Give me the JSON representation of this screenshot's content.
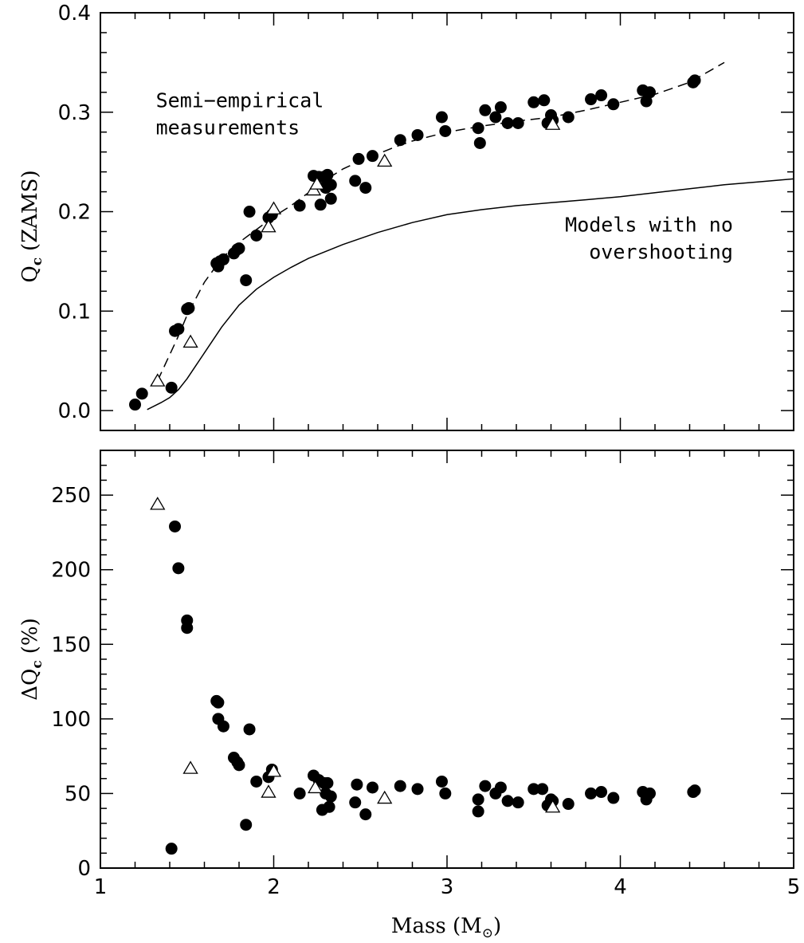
{
  "chart_data": [
    {
      "type": "scatter",
      "xlim": [
        1,
        5
      ],
      "ylim": [
        -0.02,
        0.4
      ],
      "ylabel": "Q_c (ZAMS)",
      "ylabel_main": "Q",
      "ylabel_sub": "c",
      "ylabel_rest": "(ZAMS)",
      "xticks": [
        1,
        2,
        3,
        4,
        5
      ],
      "yticks": [
        0.0,
        0.1,
        0.2,
        0.3,
        0.4
      ],
      "ytick_labels": [
        "0.0",
        "0.1",
        "0.2",
        "0.3",
        "0.4"
      ],
      "annotations": [
        {
          "lines": [
            "Semi−empirical",
            "measurements"
          ],
          "at": [
            1.32,
            0.305
          ]
        },
        {
          "lines": [
            "Models with no",
            "overshooting"
          ],
          "at": [
            4.65,
            0.18
          ]
        }
      ],
      "series": [
        {
          "marker": "filled-circle",
          "points": [
            [
              1.2,
              0.006
            ],
            [
              1.24,
              0.017
            ],
            [
              1.41,
              0.023
            ],
            [
              1.43,
              0.08
            ],
            [
              1.45,
              0.082
            ],
            [
              1.5,
              0.102
            ],
            [
              1.51,
              0.103
            ],
            [
              1.67,
              0.148
            ],
            [
              1.68,
              0.145
            ],
            [
              1.69,
              0.15
            ],
            [
              1.71,
              0.152
            ],
            [
              1.77,
              0.158
            ],
            [
              1.79,
              0.162
            ],
            [
              1.8,
              0.163
            ],
            [
              1.84,
              0.131
            ],
            [
              1.86,
              0.2
            ],
            [
              1.9,
              0.176
            ],
            [
              1.97,
              0.194
            ],
            [
              1.99,
              0.197
            ],
            [
              2.15,
              0.206
            ],
            [
              2.23,
              0.236
            ],
            [
              2.26,
              0.235
            ],
            [
              2.27,
              0.207
            ],
            [
              2.29,
              0.235
            ],
            [
              2.3,
              0.224
            ],
            [
              2.31,
              0.237
            ],
            [
              2.33,
              0.213
            ],
            [
              2.33,
              0.227
            ],
            [
              2.47,
              0.231
            ],
            [
              2.49,
              0.253
            ],
            [
              2.53,
              0.224
            ],
            [
              2.57,
              0.256
            ],
            [
              2.73,
              0.272
            ],
            [
              2.83,
              0.277
            ],
            [
              2.97,
              0.295
            ],
            [
              2.99,
              0.281
            ],
            [
              3.18,
              0.284
            ],
            [
              3.19,
              0.269
            ],
            [
              3.22,
              0.302
            ],
            [
              3.28,
              0.295
            ],
            [
              3.31,
              0.305
            ],
            [
              3.35,
              0.289
            ],
            [
              3.41,
              0.289
            ],
            [
              3.5,
              0.31
            ],
            [
              3.56,
              0.312
            ],
            [
              3.58,
              0.289
            ],
            [
              3.6,
              0.297
            ],
            [
              3.61,
              0.292
            ],
            [
              3.7,
              0.295
            ],
            [
              3.83,
              0.313
            ],
            [
              3.89,
              0.317
            ],
            [
              3.96,
              0.308
            ],
            [
              4.13,
              0.322
            ],
            [
              4.15,
              0.311
            ],
            [
              4.17,
              0.32
            ],
            [
              4.42,
              0.33
            ],
            [
              4.43,
              0.332
            ]
          ]
        },
        {
          "marker": "open-triangle",
          "points": [
            [
              1.33,
              0.03
            ],
            [
              1.52,
              0.069
            ],
            [
              1.97,
              0.185
            ],
            [
              2.0,
              0.203
            ],
            [
              2.23,
              0.222
            ],
            [
              2.25,
              0.228
            ],
            [
              2.64,
              0.251
            ],
            [
              3.61,
              0.288
            ]
          ]
        },
        {
          "type": "line",
          "style": "dashed",
          "points": [
            [
              1.33,
              0.03
            ],
            [
              1.45,
              0.075
            ],
            [
              1.5,
              0.096
            ],
            [
              1.6,
              0.129
            ],
            [
              1.7,
              0.153
            ],
            [
              1.8,
              0.169
            ],
            [
              1.9,
              0.182
            ],
            [
              2.0,
              0.195
            ],
            [
              2.1,
              0.206
            ],
            [
              2.2,
              0.219
            ],
            [
              2.3,
              0.232
            ],
            [
              2.4,
              0.243
            ],
            [
              2.5,
              0.251
            ],
            [
              2.6,
              0.258
            ],
            [
              2.7,
              0.265
            ],
            [
              2.8,
              0.271
            ],
            [
              3.0,
              0.28
            ],
            [
              3.2,
              0.286
            ],
            [
              3.4,
              0.291
            ],
            [
              3.6,
              0.295
            ],
            [
              3.8,
              0.302
            ],
            [
              4.0,
              0.31
            ],
            [
              4.2,
              0.318
            ],
            [
              4.4,
              0.33
            ],
            [
              4.6,
              0.35
            ]
          ]
        },
        {
          "type": "line",
          "style": "solid",
          "points": [
            [
              1.27,
              0.001
            ],
            [
              1.35,
              0.008
            ],
            [
              1.4,
              0.013
            ],
            [
              1.45,
              0.021
            ],
            [
              1.5,
              0.032
            ],
            [
              1.55,
              0.045
            ],
            [
              1.6,
              0.058
            ],
            [
              1.7,
              0.084
            ],
            [
              1.8,
              0.106
            ],
            [
              1.9,
              0.122
            ],
            [
              2.0,
              0.134
            ],
            [
              2.1,
              0.144
            ],
            [
              2.2,
              0.153
            ],
            [
              2.4,
              0.167
            ],
            [
              2.6,
              0.179
            ],
            [
              2.8,
              0.189
            ],
            [
              3.0,
              0.197
            ],
            [
              3.2,
              0.202
            ],
            [
              3.4,
              0.206
            ],
            [
              3.6,
              0.209
            ],
            [
              3.8,
              0.212
            ],
            [
              4.0,
              0.215
            ],
            [
              4.2,
              0.219
            ],
            [
              4.4,
              0.223
            ],
            [
              4.6,
              0.227
            ],
            [
              4.8,
              0.23
            ],
            [
              5.0,
              0.233
            ]
          ]
        }
      ]
    },
    {
      "type": "scatter",
      "xlim": [
        1,
        5
      ],
      "ylim": [
        0,
        280
      ],
      "xlabel": "Mass (M⊙)",
      "xlabel_main": "Mass (M",
      "xlabel_sub": "⊙",
      "xlabel_end": ")",
      "ylabel": "ΔQ_c (%)",
      "ylabel_main": "ΔQ",
      "ylabel_sub": "c",
      "ylabel_rest": "(%)",
      "xticks": [
        1,
        2,
        3,
        4,
        5
      ],
      "xtick_labels": [
        "1",
        "2",
        "3",
        "4",
        "5"
      ],
      "yticks": [
        0,
        50,
        100,
        150,
        200,
        250
      ],
      "ytick_labels": [
        "0",
        "50",
        "100",
        "150",
        "200",
        "250"
      ],
      "series": [
        {
          "marker": "filled-circle",
          "points": [
            [
              1.41,
              13
            ],
            [
              1.43,
              229
            ],
            [
              1.45,
              201
            ],
            [
              1.5,
              166
            ],
            [
              1.5,
              161
            ],
            [
              1.67,
              112
            ],
            [
              1.68,
              111
            ],
            [
              1.68,
              100
            ],
            [
              1.71,
              95
            ],
            [
              1.77,
              74
            ],
            [
              1.79,
              71
            ],
            [
              1.8,
              69
            ],
            [
              1.84,
              29
            ],
            [
              1.86,
              93
            ],
            [
              1.9,
              58
            ],
            [
              1.97,
              61
            ],
            [
              1.99,
              66
            ],
            [
              2.15,
              50
            ],
            [
              2.23,
              62
            ],
            [
              2.26,
              59
            ],
            [
              2.28,
              39
            ],
            [
              2.29,
              57
            ],
            [
              2.3,
              50
            ],
            [
              2.31,
              57
            ],
            [
              2.32,
              41
            ],
            [
              2.33,
              48
            ],
            [
              2.47,
              44
            ],
            [
              2.48,
              56
            ],
            [
              2.53,
              36
            ],
            [
              2.57,
              54
            ],
            [
              2.73,
              55
            ],
            [
              2.83,
              53
            ],
            [
              2.97,
              58
            ],
            [
              2.99,
              50
            ],
            [
              3.18,
              46
            ],
            [
              3.18,
              38
            ],
            [
              3.22,
              55
            ],
            [
              3.28,
              50
            ],
            [
              3.31,
              54
            ],
            [
              3.35,
              45
            ],
            [
              3.41,
              44
            ],
            [
              3.5,
              53
            ],
            [
              3.55,
              53
            ],
            [
              3.58,
              42
            ],
            [
              3.6,
              46
            ],
            [
              3.61,
              45
            ],
            [
              3.7,
              43
            ],
            [
              3.83,
              50
            ],
            [
              3.89,
              51
            ],
            [
              3.96,
              47
            ],
            [
              4.13,
              51
            ],
            [
              4.15,
              46
            ],
            [
              4.17,
              50
            ],
            [
              4.42,
              51
            ],
            [
              4.43,
              52
            ]
          ]
        },
        {
          "marker": "open-triangle",
          "points": [
            [
              1.33,
              244
            ],
            [
              1.52,
              67
            ],
            [
              1.97,
              51
            ],
            [
              2.0,
              65
            ],
            [
              2.24,
              54
            ],
            [
              2.64,
              47
            ],
            [
              3.61,
              41
            ]
          ]
        }
      ]
    }
  ]
}
